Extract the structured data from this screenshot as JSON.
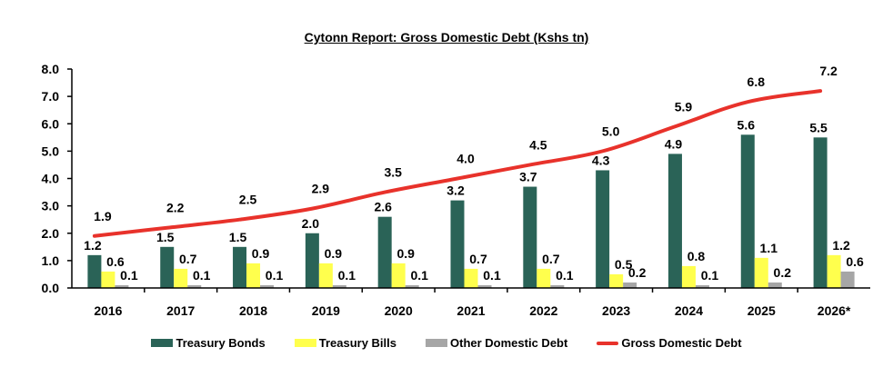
{
  "chart_data": {
    "type": "bar",
    "title": "Cytonn Report: Gross Domestic Debt (Kshs tn)",
    "xlabel": "",
    "ylabel": "",
    "ylim": [
      0,
      8
    ],
    "yticks": [
      "0.0",
      "1.0",
      "2.0",
      "3.0",
      "4.0",
      "5.0",
      "6.0",
      "7.0",
      "8.0"
    ],
    "grid": false,
    "legend_position": "bottom",
    "categories": [
      "2016",
      "2017",
      "2018",
      "2019",
      "2020",
      "2021",
      "2022",
      "2023",
      "2024",
      "2025",
      "2026*"
    ],
    "series": [
      {
        "name": "Treasury Bonds",
        "type": "bar",
        "color": "#2a6357",
        "values": [
          1.2,
          1.5,
          1.5,
          2.0,
          2.6,
          3.2,
          3.7,
          4.3,
          4.9,
          5.6,
          5.5
        ],
        "labels": [
          "1.2",
          "1.5",
          "1.5",
          "2.0",
          "2.6",
          "3.2",
          "3.7",
          "4.3",
          "4.9",
          "5.6",
          "5.5"
        ]
      },
      {
        "name": "Treasury Bills",
        "type": "bar",
        "color": "#ffff4d",
        "values": [
          0.6,
          0.7,
          0.9,
          0.9,
          0.9,
          0.7,
          0.7,
          0.5,
          0.8,
          1.1,
          1.2
        ],
        "labels": [
          "0.6",
          "0.7",
          "0.9",
          "0.9",
          "0.9",
          "0.7",
          "0.7",
          "0.5",
          "0.8",
          "1.1",
          "1.2"
        ]
      },
      {
        "name": "Other Domestic Debt",
        "type": "bar",
        "color": "#a6a6a6",
        "values": [
          0.1,
          0.1,
          0.1,
          0.1,
          0.1,
          0.1,
          0.1,
          0.2,
          0.1,
          0.2,
          0.6
        ],
        "labels": [
          "0.1",
          "0.1",
          "0.1",
          "0.1",
          "0.1",
          "0.1",
          "0.1",
          "0.2",
          "0.1",
          "0.2",
          "0.6"
        ]
      },
      {
        "name": "Gross Domestic Debt",
        "type": "line",
        "color": "#e8322b",
        "values": [
          1.9,
          2.2,
          2.5,
          2.9,
          3.5,
          4.0,
          4.5,
          5.0,
          5.9,
          6.8,
          7.2
        ],
        "labels": [
          "1.9",
          "2.2",
          "2.5",
          "2.9",
          "3.5",
          "4.0",
          "4.5",
          "5.0",
          "5.9",
          "6.8",
          "7.2"
        ]
      }
    ]
  }
}
